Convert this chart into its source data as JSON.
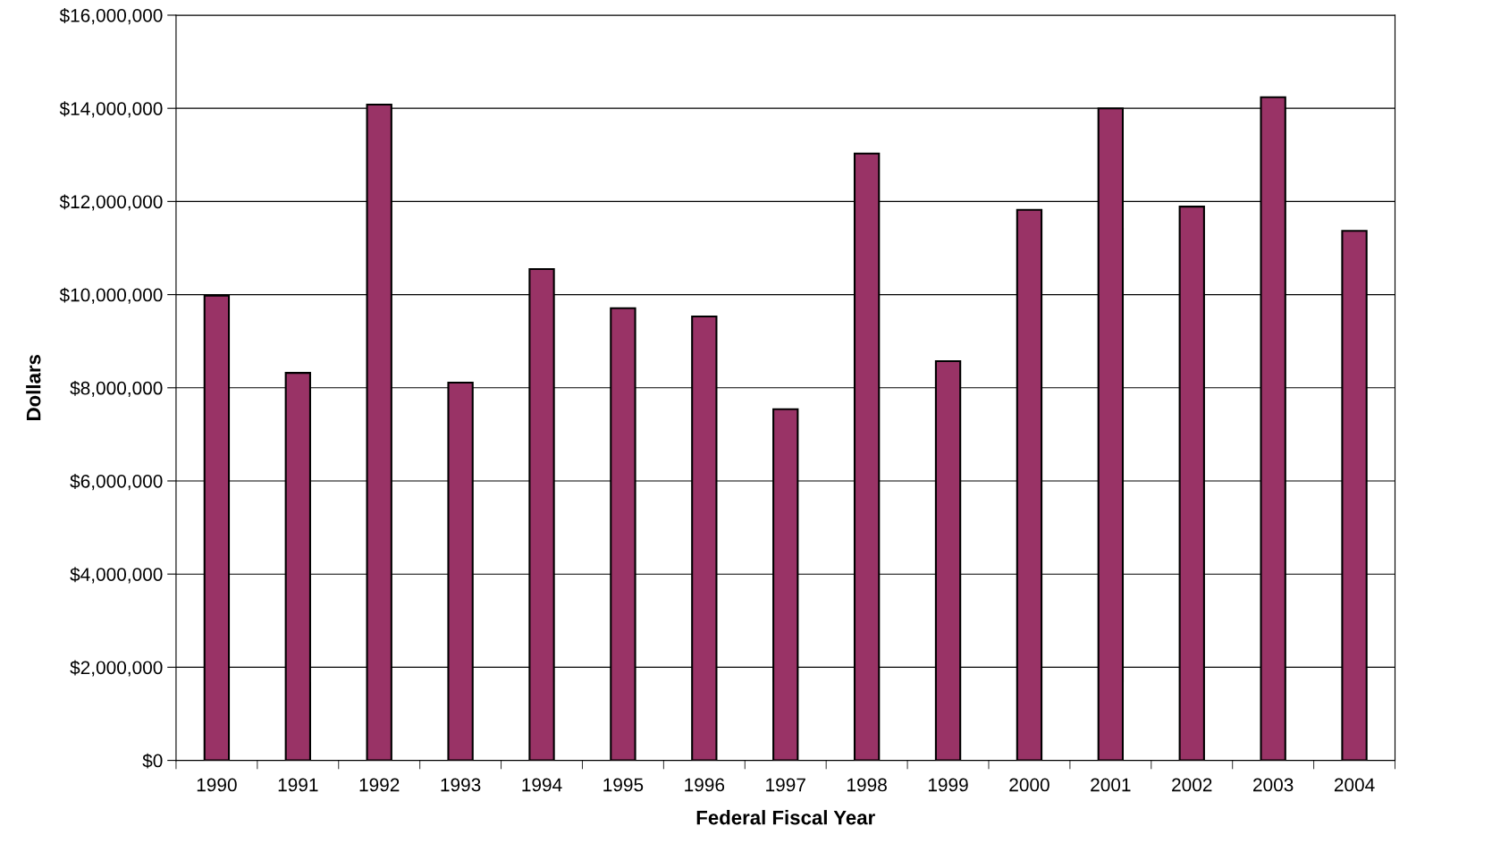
{
  "chart_data": {
    "type": "bar",
    "xlabel": "Federal Fiscal Year",
    "ylabel": "Dollars",
    "categories": [
      "1990",
      "1991",
      "1992",
      "1993",
      "1994",
      "1995",
      "1996",
      "1997",
      "1998",
      "1999",
      "2000",
      "2001",
      "2002",
      "2003",
      "2004"
    ],
    "values": [
      9980000,
      8320000,
      14080000,
      8110000,
      10550000,
      9710000,
      9530000,
      7540000,
      13030000,
      8570000,
      11820000,
      14000000,
      11890000,
      14240000,
      11370000
    ],
    "color": "#993366",
    "ylim": [
      0,
      16000000
    ],
    "yticks": [
      {
        "value": 0,
        "label": "$0"
      },
      {
        "value": 2000000,
        "label": "$2,000,000"
      },
      {
        "value": 4000000,
        "label": "$4,000,000"
      },
      {
        "value": 6000000,
        "label": "$6,000,000"
      },
      {
        "value": 8000000,
        "label": "$8,000,000"
      },
      {
        "value": 10000000,
        "label": "$10,000,000"
      },
      {
        "value": 12000000,
        "label": "$12,000,000"
      },
      {
        "value": 14000000,
        "label": "$14,000,000"
      },
      {
        "value": 16000000,
        "label": "$16,000,000"
      }
    ],
    "grid": "y"
  }
}
